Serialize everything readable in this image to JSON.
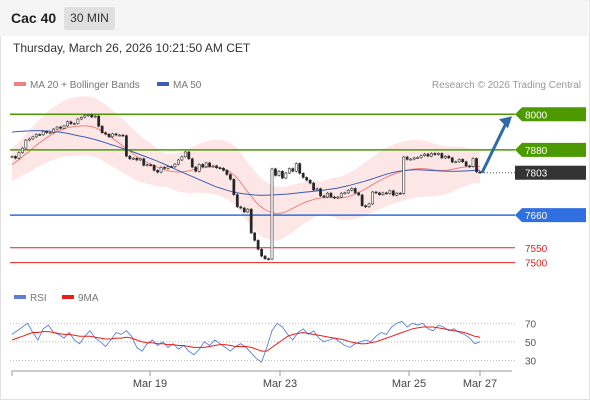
{
  "header": {
    "symbol": "Cac 40",
    "timeframe": "30 MIN"
  },
  "datetime": "Thursday, March 26, 2026 10:21:50 AM CET",
  "legend": {
    "ma_bb": "MA 20 + Bollinger Bands",
    "ma50": "MA 50",
    "rsi": "RSI",
    "ma9": "9MA"
  },
  "credit": "Research © 2026 Trading Central",
  "colors": {
    "resistance": "#4c9a00",
    "support": "#2f6fdf",
    "last": "#333333",
    "minor_support": "#e8201a",
    "ma20": "#f08080",
    "ma50": "#3a5fb0",
    "rsi": "#5b7fd9",
    "rsi_ma": "#e8201a",
    "arrow": "#2e6aa8"
  },
  "chart_data": {
    "type": "candlestick",
    "y_range": [
      7475,
      8055
    ],
    "levels": [
      {
        "value": 8000,
        "label": "8000",
        "kind": "resistance"
      },
      {
        "value": 7880,
        "label": "7880",
        "kind": "resistance"
      },
      {
        "value": 7803,
        "label": "7803",
        "kind": "last"
      },
      {
        "value": 7660,
        "label": "7660",
        "kind": "support"
      },
      {
        "value": 7550,
        "label": "7550",
        "kind": "minor_support"
      },
      {
        "value": 7500,
        "label": "7500",
        "kind": "minor_support"
      }
    ],
    "x_ticks": [
      "Mar 19",
      "Mar 23",
      "Mar 25",
      "Mar 27"
    ],
    "close": [
      7858,
      7852,
      7871,
      7886,
      7913,
      7917,
      7924,
      7932,
      7931,
      7942,
      7938,
      7939,
      7950,
      7957,
      7953,
      7961,
      7975,
      7968,
      7969,
      7984,
      7990,
      7996,
      7998,
      7991,
      7994,
      7960,
      7938,
      7933,
      7924,
      7934,
      7930,
      7930,
      7928,
      7859,
      7850,
      7852,
      7846,
      7850,
      7828,
      7830,
      7828,
      7811,
      7805,
      7821,
      7818,
      7824,
      7823,
      7832,
      7846,
      7857,
      7873,
      7850,
      7822,
      7808,
      7831,
      7823,
      7836,
      7824,
      7826,
      7820,
      7818,
      7811,
      7797,
      7781,
      7729,
      7688,
      7684,
      7671,
      7680,
      7600,
      7575,
      7545,
      7522,
      7513,
      7512,
      7816,
      7794,
      7808,
      7785,
      7802,
      7817,
      7808,
      7834,
      7801,
      7787,
      7778,
      7768,
      7745,
      7749,
      7725,
      7721,
      7734,
      7721,
      7718,
      7721,
      7734,
      7735,
      7744,
      7750,
      7735,
      7728,
      7692,
      7688,
      7698,
      7738,
      7735,
      7729,
      7735,
      7733,
      7742,
      7727,
      7734,
      7733,
      7856,
      7848,
      7849,
      7853,
      7854,
      7861,
      7866,
      7859,
      7868,
      7864,
      7868,
      7853,
      7859,
      7853,
      7839,
      7840,
      7848,
      7840,
      7826,
      7824,
      7851,
      7806,
      7803
    ],
    "ma20": [
      7830,
      7840,
      7850,
      7862,
      7872,
      7884,
      7896,
      7906,
      7916,
      7926,
      7934,
      7941,
      7947,
      7952,
      7956,
      7958,
      7960,
      7961,
      7961,
      7960,
      7957,
      7952,
      7944,
      7935,
      7926,
      7916,
      7906,
      7896,
      7886,
      7875,
      7864,
      7854,
      7846,
      7839,
      7833,
      7826,
      7820,
      7815,
      7811,
      7808,
      7806,
      7805,
      7806,
      7808,
      7811,
      7815,
      7818,
      7820,
      7822,
      7823,
      7822,
      7820,
      7816,
      7810,
      7801,
      7790,
      7774,
      7755,
      7737,
      7720,
      7703,
      7690,
      7680,
      7673,
      7668,
      7665,
      7666,
      7670,
      7676,
      7683,
      7690,
      7697,
      7703,
      7708,
      7712,
      7716,
      7718,
      7719,
      7720,
      7720,
      7718,
      7718,
      7720,
      7724,
      7729,
      7735,
      7742,
      7750,
      7758,
      7766,
      7774,
      7781,
      7788,
      7794,
      7799,
      7804,
      7808,
      7811,
      7814,
      7816,
      7817,
      7817,
      7816,
      7814,
      7812,
      7811,
      7811,
      7812,
      7814,
      7817,
      7820,
      7822,
      7823,
      7824,
      7824,
      7824
    ],
    "ma50": [
      7940,
      7942,
      7943,
      7944,
      7945,
      7945,
      7944,
      7943,
      7941,
      7939,
      7936,
      7932,
      7928,
      7924,
      7920,
      7915,
      7910,
      7904,
      7898,
      7892,
      7886,
      7880,
      7873,
      7866,
      7859,
      7852,
      7845,
      7837,
      7829,
      7821,
      7812,
      7804,
      7796,
      7788,
      7780,
      7772,
      7764,
      7756,
      7750,
      7744,
      7739,
      7735,
      7732,
      7730,
      7728,
      7727,
      7727,
      7728,
      7729,
      7730,
      7731,
      7733,
      7735,
      7737,
      7739,
      7741,
      7743,
      7745,
      7748,
      7751,
      7755,
      7759,
      7764,
      7769,
      7774,
      7780,
      7786,
      7792,
      7798,
      7803,
      7807,
      7810,
      7812,
      7813,
      7813,
      7812,
      7811,
      7810,
      7809,
      7808,
      7808,
      7808,
      7809,
      7810,
      7811,
      7812
    ],
    "rsi": [
      58,
      62,
      66,
      70,
      60,
      52,
      64,
      68,
      60,
      58,
      54,
      60,
      52,
      48,
      56,
      62,
      54,
      50,
      45,
      52,
      60,
      58,
      62,
      56,
      44,
      40,
      48,
      52,
      46,
      50,
      44,
      48,
      42,
      46,
      40,
      36,
      42,
      50,
      46,
      52,
      48,
      44,
      40,
      45,
      48,
      44,
      38,
      32,
      28,
      44,
      62,
      70,
      66,
      58,
      52,
      60,
      64,
      58,
      62,
      54,
      50,
      52,
      54,
      50,
      46,
      44,
      48,
      50,
      52,
      50,
      56,
      60,
      58,
      66,
      70,
      72,
      66,
      70,
      68,
      70,
      64,
      62,
      68,
      66,
      62,
      64,
      60,
      58,
      54,
      48,
      50
    ],
    "rsi_ma": [
      52,
      54,
      56,
      58,
      60,
      60,
      61,
      61,
      60,
      59,
      58,
      58,
      57,
      56,
      56,
      56,
      55,
      54,
      53,
      53,
      54,
      54,
      55,
      54,
      52,
      50,
      49,
      49,
      48,
      48,
      47,
      47,
      46,
      46,
      45,
      44,
      44,
      44,
      45,
      46,
      47,
      47,
      46,
      45,
      45,
      45,
      44,
      42,
      40,
      40,
      44,
      48,
      52,
      56,
      58,
      59,
      60,
      59,
      58,
      57,
      56,
      55,
      54,
      53,
      52,
      50,
      49,
      48,
      48,
      49,
      50,
      52,
      54,
      56,
      58,
      60,
      62,
      64,
      65,
      66,
      66,
      66,
      65,
      64,
      63,
      62,
      61,
      60,
      58,
      56,
      55
    ],
    "rsi_ticks": [
      70,
      50,
      30
    ]
  }
}
